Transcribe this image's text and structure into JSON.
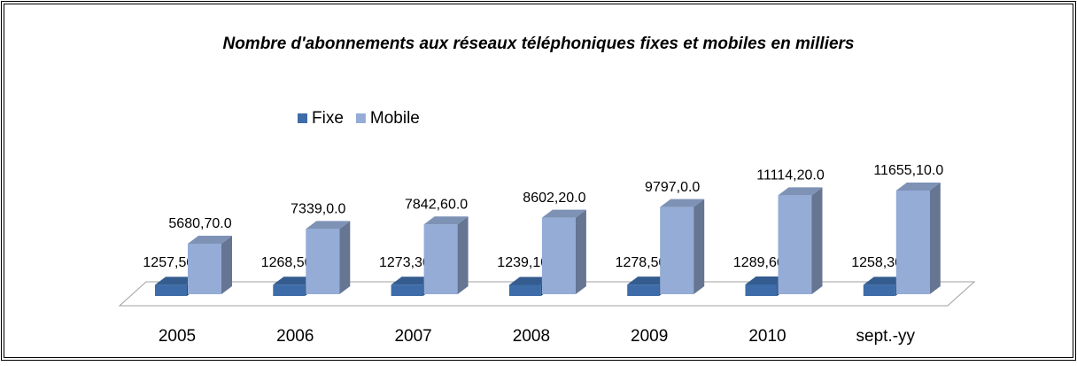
{
  "chart_data": {
    "type": "bar3d",
    "title": "Nombre d'abonnements aux réseaux téléphoniques fixes et mobiles en milliers",
    "categories": [
      "2005",
      "2006",
      "2007",
      "2008",
      "2009",
      "2010",
      "sept.-yy"
    ],
    "series": [
      {
        "name": "Fixe",
        "color": "#3d6ca8",
        "values": [
          1257.5,
          1268.5,
          1273.3,
          1239.1,
          1278.5,
          1289.6,
          1258.3
        ],
        "value_labels": [
          "1257,50.0",
          "1268,50.0",
          "1273,30.0",
          "1239,10.0",
          "1278,50.0",
          "1289,60.0",
          "1258,30.0"
        ]
      },
      {
        "name": "Mobile",
        "color": "#94acd6",
        "values": [
          5680.7,
          7339,
          7842.6,
          8602.2,
          9797,
          11114.2,
          11655.1
        ],
        "value_labels": [
          "5680,70.0",
          "7339,0.0",
          "7842,60.0",
          "8602,20.0",
          "9797,0.0",
          "11114,20.0",
          "11655,10.0"
        ]
      }
    ],
    "legend": "top"
  }
}
